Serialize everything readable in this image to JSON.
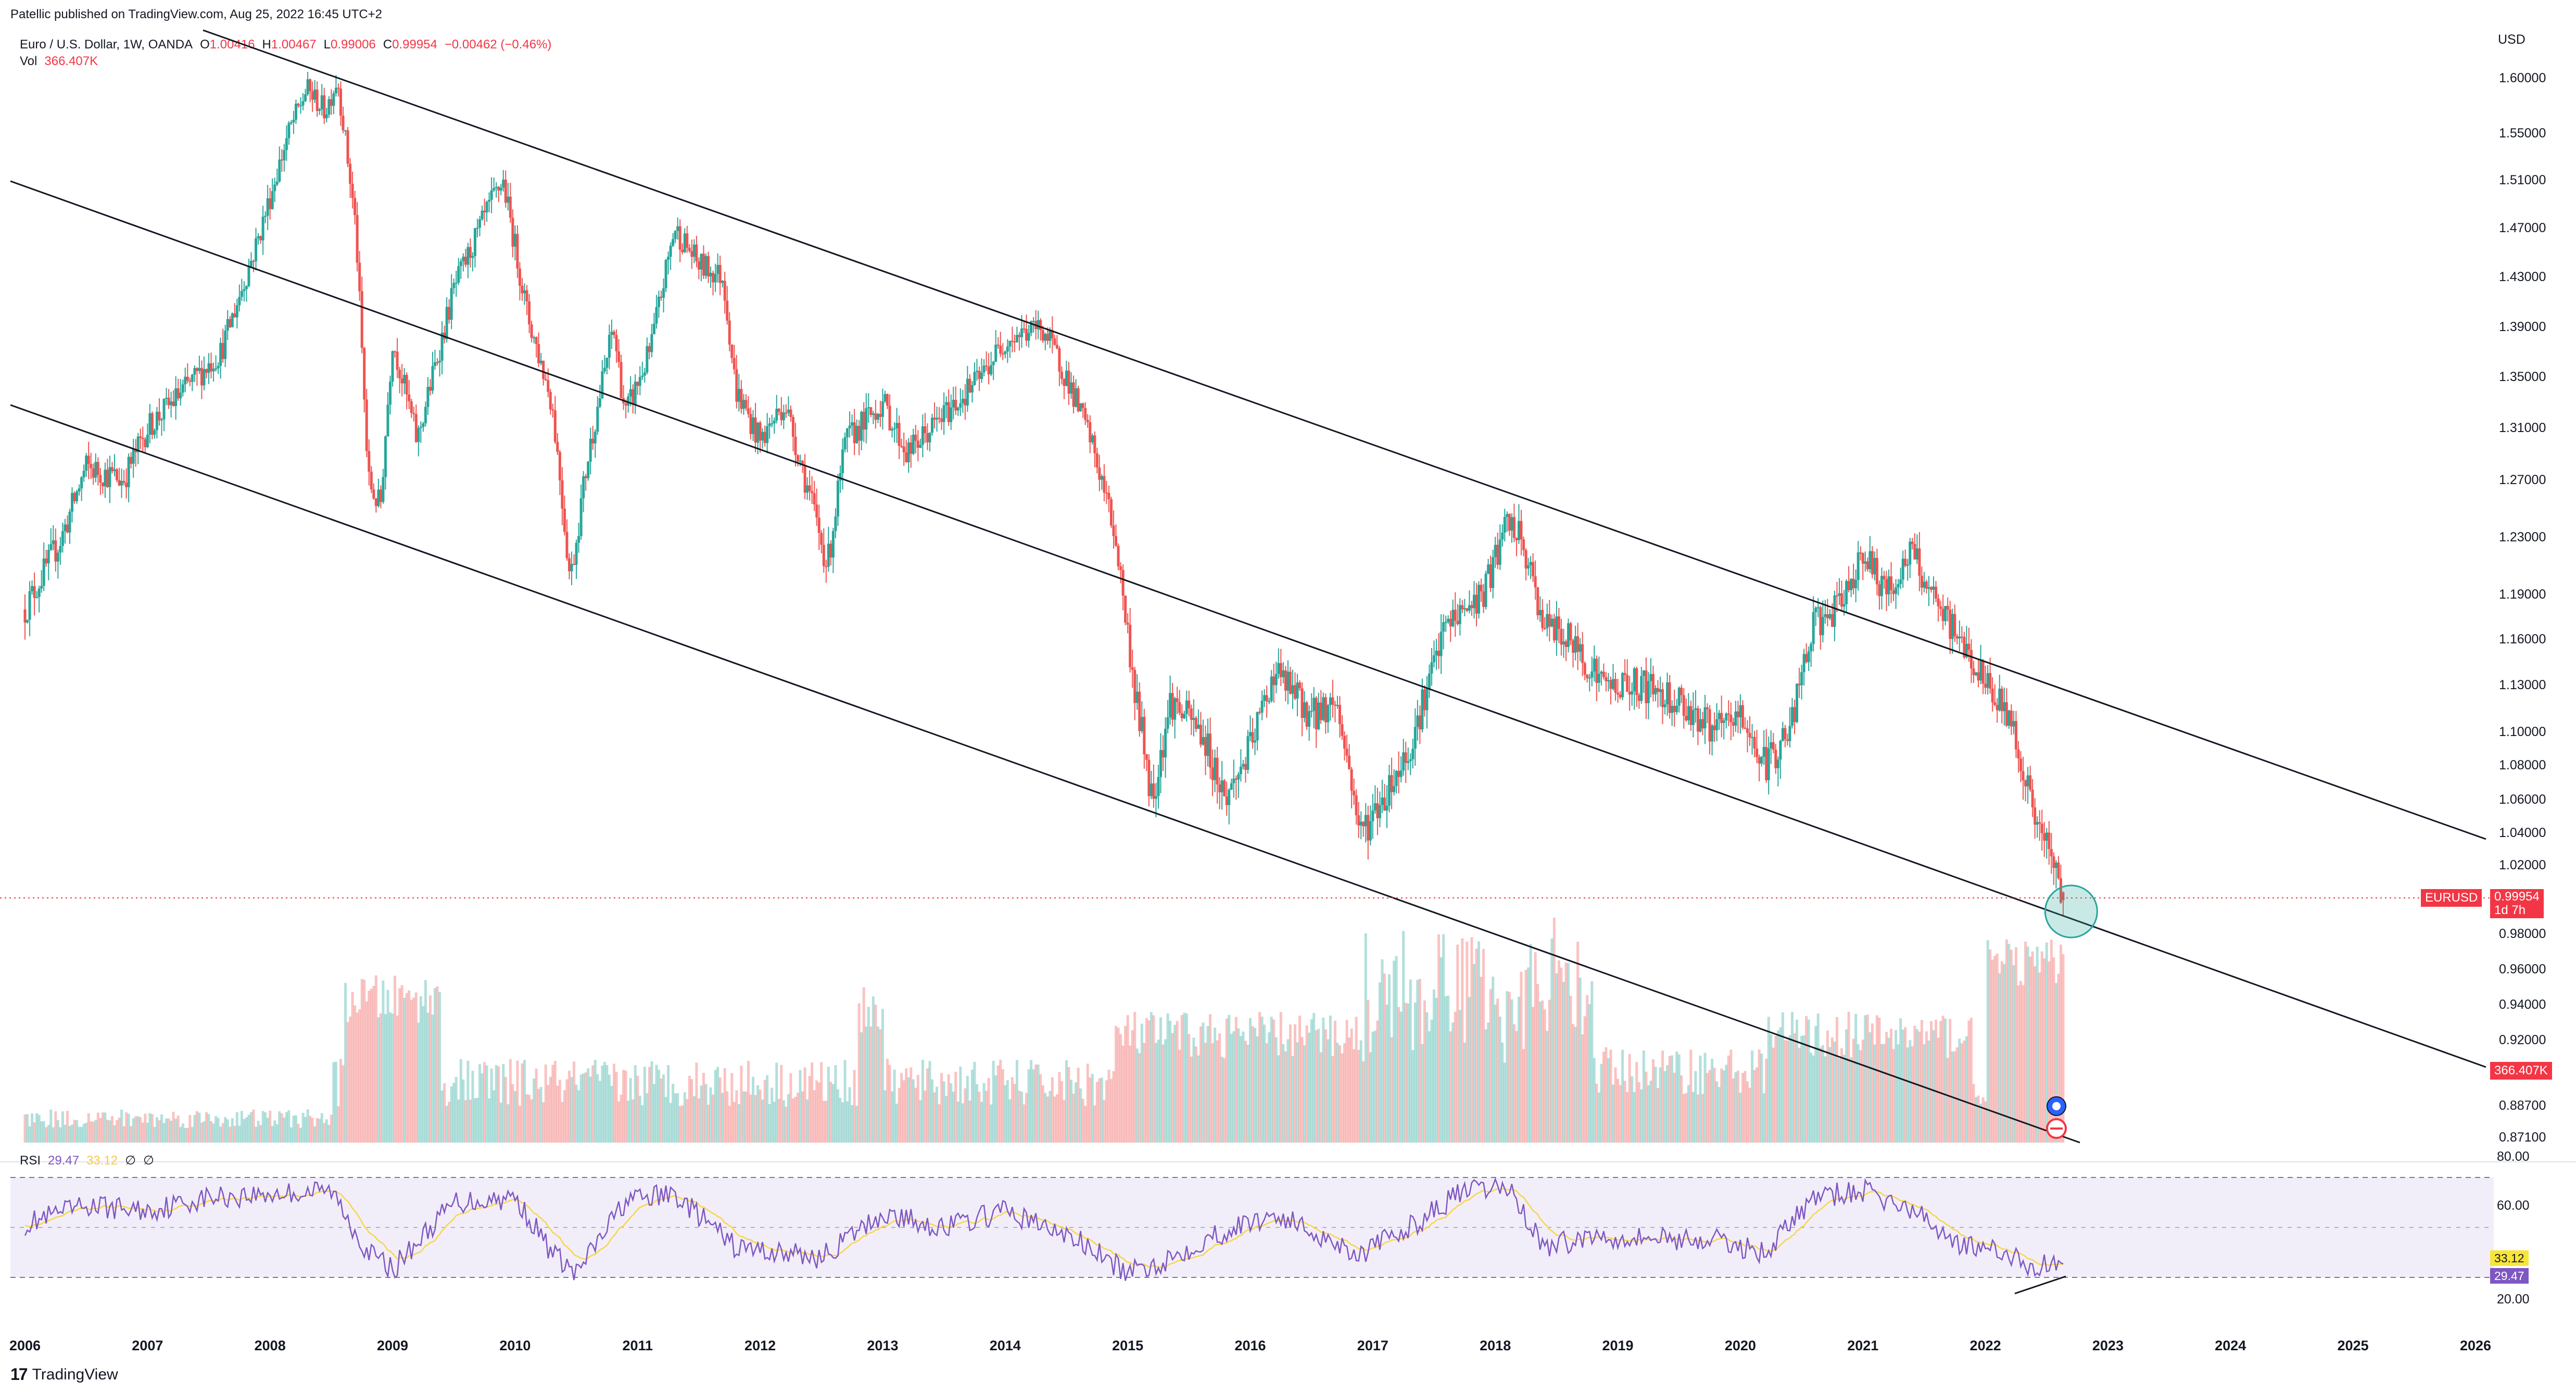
{
  "publisher_line": "Patellic published on TradingView.com, Aug 25, 2022 16:45 UTC+2",
  "instrument": {
    "title": "Euro / U.S. Dollar, 1W, OANDA",
    "open_label": "O",
    "open": "1.00416",
    "high_label": "H",
    "high": "1.00467",
    "low_label": "L",
    "low": "0.99006",
    "close_label": "C",
    "close": "0.99954",
    "change": "−0.00462 (−0.46%)"
  },
  "volume": {
    "label": "Vol",
    "value": "366.407K"
  },
  "currency": "USD",
  "price_tag": {
    "symbol": "EURUSD",
    "price": "0.99954",
    "countdown": "1d 7h"
  },
  "volume_tag": "366.407K",
  "rsi": {
    "label": "RSI",
    "value": "29.47",
    "ma_value": "33.12",
    "extra1": "∅",
    "extra2": "∅",
    "upper": "80.00",
    "upper_mid": "60.00",
    "lower": "20.00",
    "hidden_mid": "40.00"
  },
  "colors": {
    "up": "#26a69a",
    "down": "#ef5350",
    "rsi_line": "#7e57c2",
    "rsi_ma": "#f7d64a",
    "accent_red": "#f23645"
  },
  "footer": {
    "logo": "17",
    "brand": "TradingView"
  },
  "chart_data": {
    "type": "candlestick",
    "title": "Euro / U.S. Dollar, 1W, OANDA",
    "y_axis_ticks": [
      "1.60000",
      "1.55000",
      "1.51000",
      "1.47000",
      "1.43000",
      "1.39000",
      "1.35000",
      "1.31000",
      "1.27000",
      "1.23000",
      "1.19000",
      "1.16000",
      "1.13000",
      "1.10000",
      "1.08000",
      "1.06000",
      "1.04000",
      "1.02000",
      "0.98000",
      "0.96000",
      "0.94000",
      "0.92000",
      "0.88700",
      "0.87100"
    ],
    "x_axis_ticks": [
      "2006",
      "2007",
      "2008",
      "2009",
      "2010",
      "2011",
      "2012",
      "2013",
      "2014",
      "2015",
      "2016",
      "2017",
      "2018",
      "2019",
      "2020",
      "2021",
      "2022",
      "2023",
      "2024",
      "2025",
      "2026"
    ],
    "ylim": [
      0.87,
      1.63
    ],
    "xlim": [
      2006.0,
      2026.3
    ],
    "price_path": [
      [
        2006.0,
        1.18
      ],
      [
        2006.3,
        1.23
      ],
      [
        2006.5,
        1.28
      ],
      [
        2006.8,
        1.27
      ],
      [
        2007.0,
        1.31
      ],
      [
        2007.3,
        1.34
      ],
      [
        2007.6,
        1.37
      ],
      [
        2007.9,
        1.46
      ],
      [
        2008.15,
        1.55
      ],
      [
        2008.3,
        1.59
      ],
      [
        2008.45,
        1.57
      ],
      [
        2008.55,
        1.6
      ],
      [
        2008.7,
        1.47
      ],
      [
        2008.8,
        1.27
      ],
      [
        2008.9,
        1.25
      ],
      [
        2009.0,
        1.38
      ],
      [
        2009.2,
        1.3
      ],
      [
        2009.5,
        1.42
      ],
      [
        2009.8,
        1.49
      ],
      [
        2009.9,
        1.51
      ],
      [
        2010.1,
        1.4
      ],
      [
        2010.3,
        1.33
      ],
      [
        2010.45,
        1.2
      ],
      [
        2010.6,
        1.29
      ],
      [
        2010.8,
        1.39
      ],
      [
        2010.9,
        1.32
      ],
      [
        2011.1,
        1.37
      ],
      [
        2011.3,
        1.47
      ],
      [
        2011.5,
        1.44
      ],
      [
        2011.7,
        1.43
      ],
      [
        2011.8,
        1.34
      ],
      [
        2012.0,
        1.3
      ],
      [
        2012.2,
        1.33
      ],
      [
        2012.4,
        1.26
      ],
      [
        2012.55,
        1.21
      ],
      [
        2012.7,
        1.3
      ],
      [
        2013.0,
        1.33
      ],
      [
        2013.2,
        1.29
      ],
      [
        2013.5,
        1.32
      ],
      [
        2013.8,
        1.35
      ],
      [
        2014.0,
        1.38
      ],
      [
        2014.3,
        1.39
      ],
      [
        2014.5,
        1.35
      ],
      [
        2014.7,
        1.3
      ],
      [
        2014.9,
        1.23
      ],
      [
        2015.05,
        1.13
      ],
      [
        2015.2,
        1.06
      ],
      [
        2015.35,
        1.12
      ],
      [
        2015.6,
        1.1
      ],
      [
        2015.8,
        1.06
      ],
      [
        2016.0,
        1.09
      ],
      [
        2016.2,
        1.14
      ],
      [
        2016.5,
        1.11
      ],
      [
        2016.7,
        1.12
      ],
      [
        2016.9,
        1.04
      ],
      [
        2017.0,
        1.05
      ],
      [
        2017.3,
        1.09
      ],
      [
        2017.6,
        1.17
      ],
      [
        2017.9,
        1.19
      ],
      [
        2018.1,
        1.24
      ],
      [
        2018.2,
        1.23
      ],
      [
        2018.4,
        1.17
      ],
      [
        2018.6,
        1.16
      ],
      [
        2018.9,
        1.13
      ],
      [
        2019.2,
        1.13
      ],
      [
        2019.5,
        1.12
      ],
      [
        2019.8,
        1.1
      ],
      [
        2020.0,
        1.11
      ],
      [
        2020.2,
        1.08
      ],
      [
        2020.4,
        1.1
      ],
      [
        2020.6,
        1.17
      ],
      [
        2020.8,
        1.18
      ],
      [
        2021.0,
        1.22
      ],
      [
        2021.2,
        1.19
      ],
      [
        2021.4,
        1.22
      ],
      [
        2021.6,
        1.18
      ],
      [
        2021.8,
        1.16
      ],
      [
        2022.0,
        1.13
      ],
      [
        2022.2,
        1.11
      ],
      [
        2022.4,
        1.05
      ],
      [
        2022.55,
        1.02
      ],
      [
        2022.65,
        0.9995
      ]
    ],
    "volume_peaks_k": {
      "2008.8": "high",
      "2015.0": "high",
      "2018.0": "high",
      "2020.2": "high",
      "2022.2": "high"
    },
    "rsi_series": {
      "name": "RSI",
      "values": [
        [
          2006.0,
          52
        ],
        [
          2006.5,
          63
        ],
        [
          2007.0,
          60
        ],
        [
          2007.5,
          68
        ],
        [
          2008.0,
          70
        ],
        [
          2008.5,
          72
        ],
        [
          2008.8,
          35
        ],
        [
          2009.0,
          25
        ],
        [
          2009.5,
          65
        ],
        [
          2010.0,
          68
        ],
        [
          2010.3,
          35
        ],
        [
          2010.5,
          22
        ],
        [
          2010.9,
          66
        ],
        [
          2011.3,
          70
        ],
        [
          2011.8,
          38
        ],
        [
          2012.5,
          32
        ],
        [
          2013.0,
          58
        ],
        [
          2013.5,
          50
        ],
        [
          2014.0,
          60
        ],
        [
          2014.6,
          42
        ],
        [
          2015.0,
          22
        ],
        [
          2015.3,
          30
        ],
        [
          2015.7,
          45
        ],
        [
          2016.2,
          58
        ],
        [
          2016.9,
          34
        ],
        [
          2017.3,
          50
        ],
        [
          2017.7,
          70
        ],
        [
          2018.1,
          75
        ],
        [
          2018.4,
          38
        ],
        [
          2018.8,
          45
        ],
        [
          2019.3,
          44
        ],
        [
          2019.8,
          42
        ],
        [
          2020.2,
          35
        ],
        [
          2020.6,
          68
        ],
        [
          2021.0,
          72
        ],
        [
          2021.4,
          60
        ],
        [
          2021.8,
          40
        ],
        [
          2022.2,
          33
        ],
        [
          2022.4,
          26
        ],
        [
          2022.65,
          29.47
        ]
      ],
      "ma_value": 33.12
    },
    "rsi_levels": [
      80,
      60,
      40,
      20
    ],
    "channel_lines": [
      {
        "name": "upper",
        "from": [
          2007.5,
          1.64
        ],
        "to": [
          2026.0,
          1.028
        ]
      },
      {
        "name": "middle",
        "from": [
          2006.0,
          1.5
        ],
        "to": [
          2026.0,
          0.916
        ]
      },
      {
        "name": "lower",
        "from": [
          2006.0,
          1.33
        ],
        "to": [
          2023.0,
          0.871
        ]
      }
    ],
    "highlight_circle": {
      "x": 2022.7,
      "y": 0.99
    },
    "last_price": 0.99954
  }
}
